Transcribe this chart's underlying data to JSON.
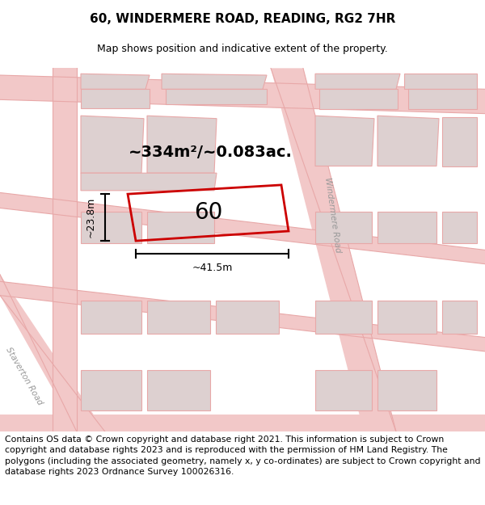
{
  "title": "60, WINDERMERE ROAD, READING, RG2 7HR",
  "subtitle": "Map shows position and indicative extent of the property.",
  "footer": "Contains OS data © Crown copyright and database right 2021. This information is subject to Crown copyright and database rights 2023 and is reproduced with the permission of HM Land Registry. The polygons (including the associated geometry, namely x, y co-ordinates) are subject to Crown copyright and database rights 2023 Ordnance Survey 100026316.",
  "area_label": "~334m²/~0.083ac.",
  "plot_number": "60",
  "width_label": "~41.5m",
  "height_label": "~23.8m",
  "map_bg": "#faf7f7",
  "road_fill": "#f2c8c8",
  "road_line": "#e8a8a8",
  "building_fill": "#ddd0d0",
  "building_line": "#e8a8a8",
  "plot_color": "#cc0000",
  "dim_color": "#000000",
  "title_fontsize": 11,
  "subtitle_fontsize": 9,
  "footer_fontsize": 7.8,
  "area_fontsize": 14,
  "plot_num_fontsize": 20,
  "dim_fontsize": 9,
  "road_label_fontsize": 7.5
}
